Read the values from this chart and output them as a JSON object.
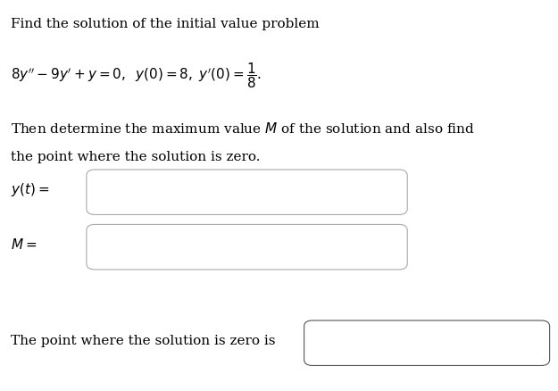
{
  "bg_color": "#ffffff",
  "text_color": "#000000",
  "line1": "Find the solution of the initial value problem",
  "line3": "Then determine the maximum value $M$ of the solution and also find",
  "line4": "the point where the solution is zero.",
  "label_yt": "$y(t) =$",
  "label_M": "$M =$",
  "label_zero": "The point where the solution is zero is",
  "font_size": 11,
  "box_edge_color": "#aaaaaa",
  "box_face_color": "#ffffff"
}
